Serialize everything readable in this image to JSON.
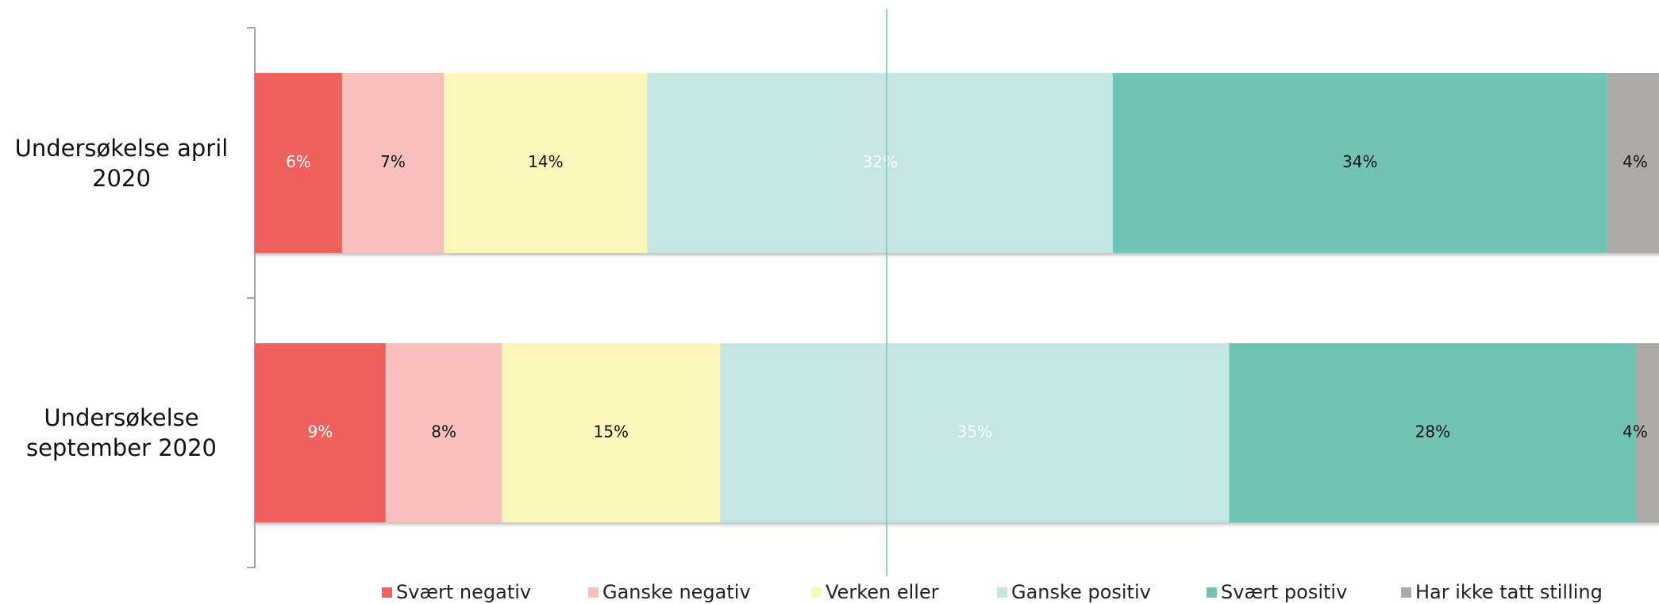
{
  "chart_data": {
    "type": "stacked-bar-horizontal",
    "categories": [
      "Undersøkelse april 2020",
      "Undersøkelse september 2020"
    ],
    "xlim": [
      0,
      100
    ],
    "series": [
      {
        "name": "Svært negativ",
        "color": "#f0605d",
        "values": [
          6,
          9
        ],
        "value_labels": [
          "6%",
          "9%"
        ]
      },
      {
        "name": "Ganske negativ",
        "color": "#f9bfbd",
        "values": [
          7,
          8
        ],
        "value_labels": [
          "7%",
          "8%"
        ]
      },
      {
        "name": "Verken eller",
        "color": "#fbf6ba",
        "values": [
          14,
          15
        ],
        "value_labels": [
          "14%",
          "15%"
        ]
      },
      {
        "name": "Ganske positiv",
        "color": "#c6e6e1",
        "values": [
          32,
          35
        ],
        "value_labels": [
          "32%",
          "35%"
        ]
      },
      {
        "name": "Svært positiv",
        "color": "#71c3b4",
        "values": [
          34,
          28
        ],
        "value_labels": [
          "34%",
          "28%"
        ]
      },
      {
        "name": "Har ikke tatt stilling",
        "color": "#aeaaaa",
        "values": [
          4,
          4
        ],
        "value_labels": [
          "4%",
          "4%"
        ]
      }
    ],
    "legend": "bottom"
  }
}
